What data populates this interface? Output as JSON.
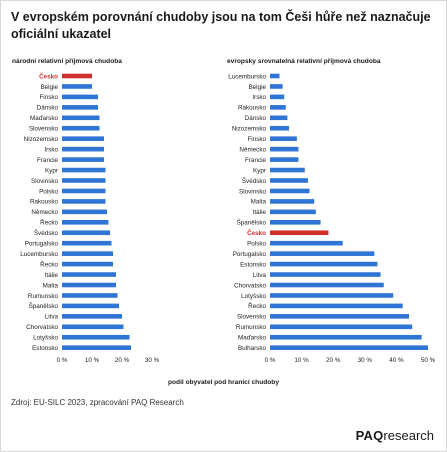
{
  "title": "V evropském porovnání chudoby jsou na tom Češi hůře než naznačuje oficiální ukazatel",
  "source": "Zdroj: EU-SILC 2023, zpracování PAQ Research",
  "logo": {
    "bold": "PAQ",
    "rest": "research"
  },
  "xlabel": "podíl obyvatel pod hranicí chudoby",
  "colors": {
    "bar": "#2e75d6",
    "highlight": "#d0312d",
    "highlight_label": "#d0312d"
  },
  "chart_data": [
    {
      "type": "bar",
      "orientation": "horizontal",
      "title": "národní relativní příjmová chudoba",
      "highlight": "Česko",
      "categories": [
        "Česko",
        "Belgie",
        "Finsko",
        "Dánsko",
        "Maďarsko",
        "Slovensko",
        "Nizozemsko",
        "Irsko",
        "Francie",
        "Kypr",
        "Slovinsko",
        "Polsko",
        "Rakousko",
        "Německo",
        "Řecko",
        "Švédsko",
        "Portugalsko",
        "Lucembursko",
        "Řecko",
        "Itálie",
        "Malta",
        "Rumunsko",
        "Španělsko",
        "Litva",
        "Chorvatsko",
        "Lotyšsko",
        "Estonsko"
      ],
      "values": [
        10,
        10,
        12,
        12,
        12.5,
        12.5,
        14,
        14,
        14,
        14.5,
        14.5,
        14.5,
        14.5,
        15,
        15.5,
        16,
        16.5,
        17,
        17,
        18,
        18,
        18.5,
        19,
        20,
        20.5,
        22.5,
        23
      ],
      "xlim": [
        0,
        30
      ],
      "ticks": [
        "0 %",
        "10 %",
        "20 %",
        "30 %"
      ]
    },
    {
      "type": "bar",
      "orientation": "horizontal",
      "title": "evropsky srovnatelná relativní příjmová chudoba",
      "highlight": "Česko",
      "categories": [
        "Lucembursko",
        "Belgie",
        "Irsko",
        "Rakousko",
        "Dánsko",
        "Nizozemsko",
        "Finsko",
        "Německo",
        "Francie",
        "Kypr",
        "Švédsko",
        "Slovinsko",
        "Malta",
        "Itálie",
        "Španělsko",
        "Česko",
        "Polsko",
        "Portugalsko",
        "Estonsko",
        "Litva",
        "Chorvatsko",
        "Lotyšsko",
        "Řecko",
        "Slovensko",
        "Rumunsko",
        "Maďarsko",
        "Bulharsko"
      ],
      "values": [
        3,
        4,
        4.5,
        5,
        5.5,
        6,
        8.5,
        9,
        9,
        11,
        12,
        12.5,
        14,
        14.5,
        16,
        18.5,
        23,
        33,
        34,
        35,
        36,
        39,
        42,
        44,
        45,
        48,
        50
      ],
      "xlim": [
        0,
        50
      ],
      "ticks": [
        "0 %",
        "10 %",
        "20 %",
        "30 %",
        "40 %",
        "50 %"
      ]
    }
  ]
}
